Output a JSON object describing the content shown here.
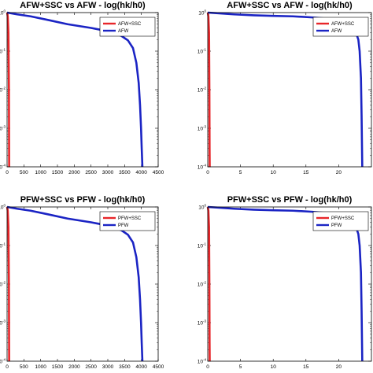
{
  "colors": {
    "series1": "#e8262a",
    "series2": "#1b24c4",
    "axis": "#000000",
    "background": "#ffffff"
  },
  "chart_data": [
    {
      "type": "line",
      "title": "AFW+SSC vs AFW - log(hk/h0)",
      "y_scale": "log",
      "xlim": [
        0,
        4500
      ],
      "ylim": [
        0.0001,
        1
      ],
      "x_ticks": [
        "0",
        "500",
        "1000",
        "1500",
        "2000",
        "2500",
        "3000",
        "3500",
        "4000",
        "4500"
      ],
      "legend_position": "top-right",
      "grid": false,
      "series": [
        {
          "name": "AFW+SSC",
          "x": [
            0,
            20,
            40,
            55,
            60,
            62
          ],
          "y": [
            1,
            0.8,
            0.3,
            0.01,
            0.0003,
            0.0001
          ]
        },
        {
          "name": "AFW",
          "x": [
            0,
            300,
            700,
            1200,
            1800,
            2500,
            3000,
            3400,
            3600,
            3750,
            3850,
            3920,
            3960,
            3990,
            4010,
            4030
          ],
          "y": [
            1,
            0.9,
            0.8,
            0.65,
            0.5,
            0.4,
            0.33,
            0.25,
            0.19,
            0.12,
            0.05,
            0.015,
            0.004,
            0.001,
            0.0003,
            0.0001
          ]
        }
      ]
    },
    {
      "type": "line",
      "title": "AFW+SSC vs AFW - log(hk/h0)",
      "y_scale": "log",
      "xlim": [
        0,
        25
      ],
      "ylim": [
        0.0001,
        1
      ],
      "x_ticks": [
        "0",
        "5",
        "10",
        "15",
        "20"
      ],
      "legend_position": "top-right",
      "grid": false,
      "series": [
        {
          "name": "AFW+SSC",
          "x": [
            0,
            0.1,
            0.2,
            0.25,
            0.28,
            0.3
          ],
          "y": [
            1,
            0.8,
            0.3,
            0.01,
            0.0003,
            0.0001
          ]
        },
        {
          "name": "AFW",
          "x": [
            0,
            2,
            4,
            7,
            10,
            13,
            16,
            19,
            21,
            22,
            22.5,
            23,
            23.2,
            23.4,
            23.5,
            23.6
          ],
          "y": [
            1,
            0.95,
            0.9,
            0.85,
            0.82,
            0.8,
            0.75,
            0.68,
            0.6,
            0.5,
            0.35,
            0.2,
            0.1,
            0.02,
            0.002,
            0.0001
          ]
        }
      ]
    },
    {
      "type": "line",
      "title": "PFW+SSC vs PFW - log(hk/h0)",
      "y_scale": "log",
      "xlim": [
        0,
        4500
      ],
      "ylim": [
        0.0001,
        1
      ],
      "x_ticks": [
        "0",
        "500",
        "1000",
        "1500",
        "2000",
        "2500",
        "3000",
        "3500",
        "4000",
        "4500"
      ],
      "legend_position": "top-right",
      "grid": false,
      "series": [
        {
          "name": "PFW+SSC",
          "x": [
            0,
            20,
            40,
            55,
            60,
            62
          ],
          "y": [
            1,
            0.8,
            0.3,
            0.01,
            0.0003,
            0.0001
          ]
        },
        {
          "name": "PFW",
          "x": [
            0,
            300,
            700,
            1200,
            1800,
            2500,
            3000,
            3400,
            3600,
            3750,
            3850,
            3920,
            3960,
            3990,
            4010,
            4030
          ],
          "y": [
            1,
            0.9,
            0.8,
            0.65,
            0.5,
            0.4,
            0.33,
            0.25,
            0.19,
            0.12,
            0.05,
            0.015,
            0.004,
            0.001,
            0.0003,
            0.0001
          ]
        }
      ]
    },
    {
      "type": "line",
      "title": "PFW+SSC vs PFW - log(hk/h0)",
      "y_scale": "log",
      "xlim": [
        0,
        25
      ],
      "ylim": [
        0.0001,
        1
      ],
      "x_ticks": [
        "0",
        "5",
        "10",
        "15",
        "20"
      ],
      "legend_position": "top-right",
      "grid": false,
      "series": [
        {
          "name": "PFW+SSC",
          "x": [
            0,
            0.1,
            0.2,
            0.25,
            0.28,
            0.3
          ],
          "y": [
            1,
            0.8,
            0.3,
            0.01,
            0.0003,
            0.0001
          ]
        },
        {
          "name": "PFW",
          "x": [
            0,
            2,
            4,
            7,
            10,
            13,
            16,
            19,
            21,
            22,
            22.5,
            23,
            23.2,
            23.4,
            23.5,
            23.6
          ],
          "y": [
            1,
            0.95,
            0.9,
            0.85,
            0.82,
            0.8,
            0.75,
            0.68,
            0.6,
            0.5,
            0.35,
            0.2,
            0.1,
            0.02,
            0.002,
            0.0001
          ]
        }
      ]
    }
  ]
}
